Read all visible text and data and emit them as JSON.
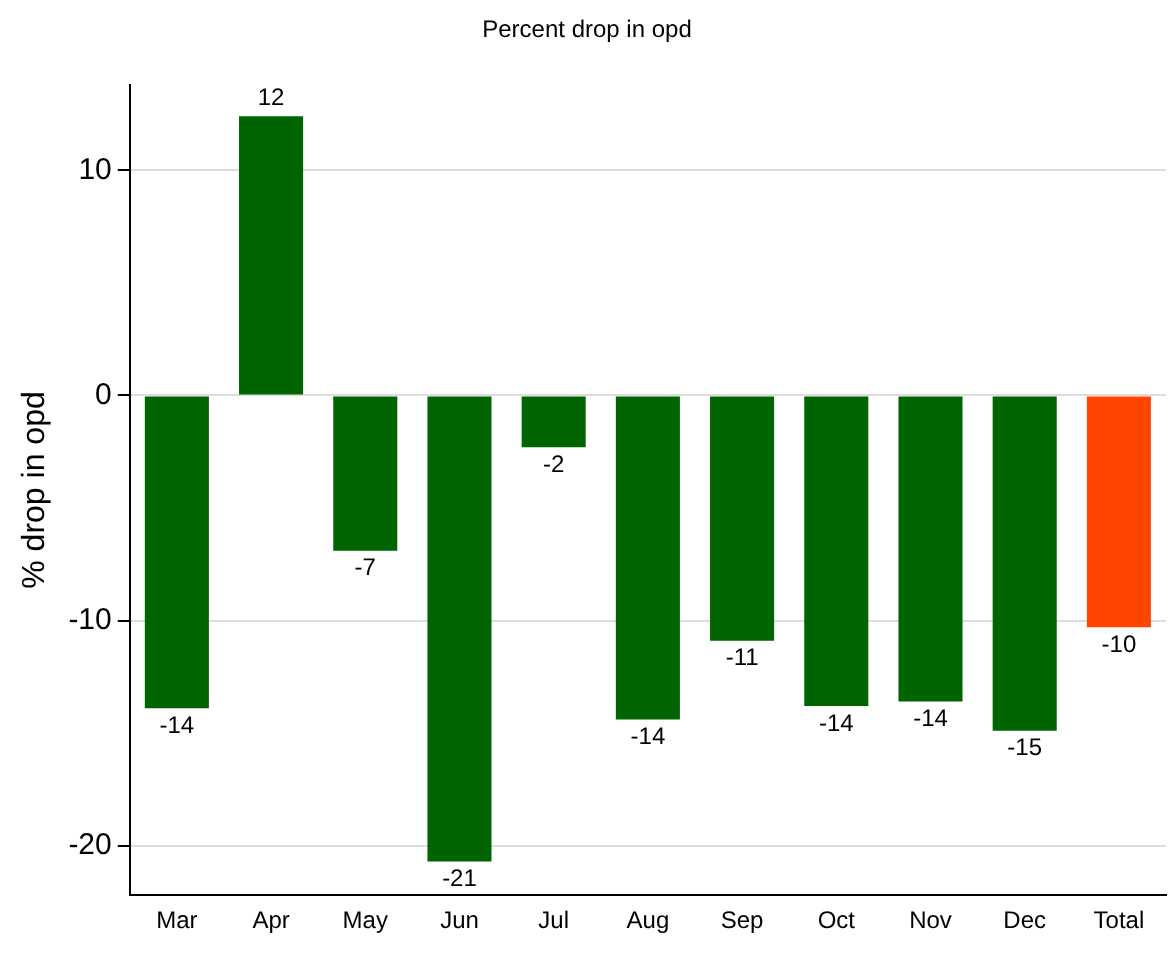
{
  "chart_data": {
    "type": "bar",
    "title": "Percent drop in opd",
    "ylabel": "% drop in opd",
    "categories": [
      "Mar",
      "Apr",
      "May",
      "Jun",
      "Jul",
      "Aug",
      "Sep",
      "Oct",
      "Nov",
      "Dec",
      "Total"
    ],
    "values": [
      -13.9,
      12.4,
      -6.9,
      -20.7,
      -2.3,
      -14.4,
      -10.9,
      -13.8,
      -13.6,
      -14.9,
      -10.3
    ],
    "colors": [
      "#006400",
      "#006400",
      "#006400",
      "#006400",
      "#006400",
      "#006400",
      "#006400",
      "#006400",
      "#006400",
      "#006400",
      "#ff4500"
    ],
    "value_labels": [
      "-14",
      "12",
      "-7",
      "-21",
      "-2",
      "-14",
      "-11",
      "-14",
      "-14",
      "-15",
      "-10"
    ],
    "ylim": [
      -22.2,
      13.8
    ],
    "yticks": [
      -20,
      -10,
      0,
      10
    ],
    "grid": "y",
    "legend": false
  }
}
